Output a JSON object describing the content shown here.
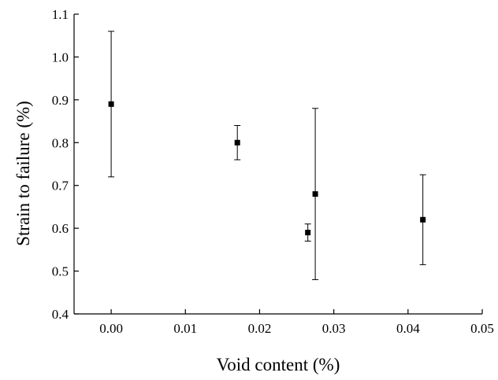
{
  "chart_data": {
    "type": "scatter",
    "title": "",
    "xlabel": "Void content (%)",
    "ylabel": "Strain to failure (%)",
    "xlim": [
      -0.005,
      0.05
    ],
    "ylim": [
      0.4,
      1.1
    ],
    "x_ticks": [
      0.0,
      0.01,
      0.02,
      0.03,
      0.04,
      0.05
    ],
    "x_tick_labels": [
      "0.00",
      "0.01",
      "0.02",
      "0.03",
      "0.04",
      "0.05"
    ],
    "y_ticks": [
      0.4,
      0.5,
      0.6,
      0.7,
      0.8,
      0.9,
      1.0,
      1.1
    ],
    "y_tick_labels": [
      "0.4",
      "0.5",
      "0.6",
      "0.7",
      "0.8",
      "0.9",
      "1.0",
      "1.1"
    ],
    "grid": false,
    "legend": "none",
    "marker": "square",
    "color": "#000000",
    "points": [
      {
        "x": 0.0,
        "y": 0.89,
        "y_low": 0.72,
        "y_high": 1.06
      },
      {
        "x": 0.017,
        "y": 0.8,
        "y_low": 0.76,
        "y_high": 0.84
      },
      {
        "x": 0.0265,
        "y": 0.59,
        "y_low": 0.57,
        "y_high": 0.61
      },
      {
        "x": 0.0275,
        "y": 0.68,
        "y_low": 0.48,
        "y_high": 0.88
      },
      {
        "x": 0.042,
        "y": 0.62,
        "y_low": 0.515,
        "y_high": 0.725
      }
    ]
  }
}
